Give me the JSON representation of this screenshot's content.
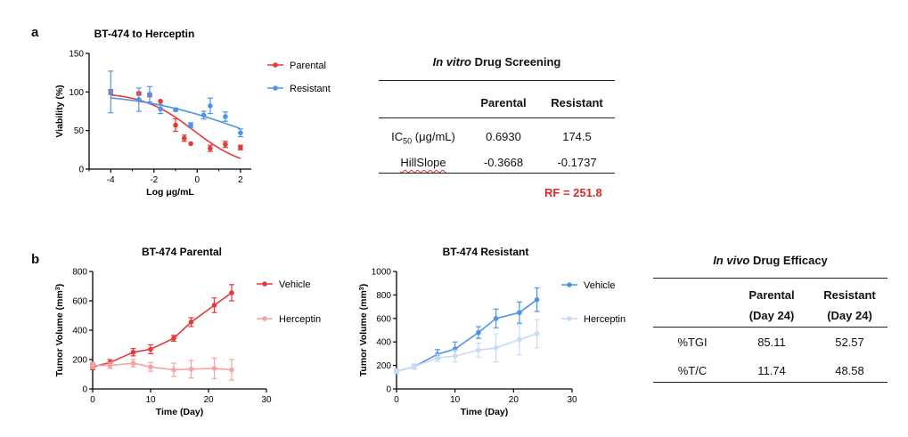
{
  "panels": {
    "a": "a",
    "b": "b"
  },
  "colors": {
    "parental": "#e63939",
    "resistant": "#4d94e8",
    "parental_herceptin": "#f5a3a3",
    "resistant_herceptin": "#c6dcf5",
    "rf": "#d42a2a"
  },
  "chart_data": [
    {
      "id": "chart-a",
      "type": "scatter",
      "title": "BT-474 to Herceptin",
      "xlabel": "Log μg/mL",
      "ylabel": "Viability (%)",
      "xlim": [
        -5,
        2.5
      ],
      "ylim": [
        0,
        150
      ],
      "xticks": [
        -4,
        -2,
        0,
        2
      ],
      "yticks": [
        0,
        50,
        100,
        150
      ],
      "legend_position": "top-right",
      "series": [
        {
          "name": "Parental",
          "color": "#e63939",
          "marker": "circle",
          "x": [
            -4,
            -2.7,
            -2.2,
            -1.7,
            -1.0,
            -0.6,
            -0.3,
            0.6,
            1.3,
            2.0
          ],
          "y": [
            100,
            98,
            96,
            88,
            57,
            40,
            33,
            27,
            32,
            28
          ],
          "err": [
            3,
            2,
            2,
            0,
            8,
            4,
            0,
            4,
            4,
            3
          ],
          "fit": {
            "bottom": 0,
            "top": 100,
            "logIC50": -0.159,
            "hill": -0.3668
          }
        },
        {
          "name": "Resistant",
          "color": "#4d94e8",
          "marker": "circle",
          "x": [
            -4,
            -2.7,
            -2.2,
            -1.7,
            -1.0,
            -0.3,
            0.3,
            0.6,
            1.3,
            2.0
          ],
          "y": [
            100,
            90,
            97,
            78,
            77,
            57,
            70,
            82,
            68,
            47
          ],
          "err": [
            27,
            15,
            10,
            6,
            2,
            3,
            5,
            10,
            6,
            5
          ],
          "fit": {
            "bottom": 0,
            "top": 100,
            "logIC50": 2.242,
            "hill": -0.1737
          }
        }
      ]
    },
    {
      "id": "chart-b1",
      "type": "line",
      "title": "BT-474 Parental",
      "xlabel": "Time (Day)",
      "ylabel": "Tumor Volume (mm³)",
      "ylabel_base": "Tumor Volume (mm",
      "ylabel_sup": "3",
      "ylabel_end": ")",
      "xlim": [
        0,
        30
      ],
      "ylim": [
        0,
        800
      ],
      "xticks": [
        0,
        10,
        20,
        30
      ],
      "yticks": [
        0,
        200,
        400,
        600,
        800
      ],
      "legend_position": "right",
      "series": [
        {
          "name": "Vehicle",
          "color": "#e63939",
          "x": [
            0,
            3,
            7,
            10,
            14,
            17,
            21,
            24
          ],
          "y": [
            150,
            180,
            250,
            270,
            345,
            455,
            570,
            655
          ],
          "err": [
            20,
            20,
            25,
            30,
            20,
            30,
            50,
            55
          ]
        },
        {
          "name": "Herceptin",
          "color": "#f5a3a3",
          "x": [
            0,
            3,
            7,
            10,
            14,
            17,
            21,
            24
          ],
          "y": [
            160,
            160,
            175,
            150,
            130,
            135,
            140,
            130
          ],
          "err": [
            20,
            20,
            25,
            30,
            45,
            60,
            70,
            70
          ]
        }
      ]
    },
    {
      "id": "chart-b2",
      "type": "line",
      "title": "BT-474 Resistant",
      "xlabel": "Time (Day)",
      "ylabel": "Tumor Volume (mm³)",
      "ylabel_base": "Tumor Volume (mm",
      "ylabel_sup": "3",
      "ylabel_end": ")",
      "xlim": [
        0,
        30
      ],
      "ylim": [
        0,
        1000
      ],
      "xticks": [
        0,
        10,
        20,
        30
      ],
      "yticks": [
        0,
        200,
        400,
        600,
        800,
        1000
      ],
      "legend_position": "right",
      "series": [
        {
          "name": "Vehicle",
          "color": "#4d94e8",
          "x": [
            0,
            3,
            7,
            10,
            14,
            17,
            21,
            24
          ],
          "y": [
            150,
            190,
            295,
            340,
            480,
            600,
            650,
            760
          ],
          "err": [
            20,
            20,
            40,
            60,
            50,
            80,
            90,
            100
          ]
        },
        {
          "name": "Herceptin",
          "color": "#c6dcf5",
          "x": [
            0,
            3,
            7,
            10,
            14,
            17,
            21,
            24
          ],
          "y": [
            150,
            190,
            265,
            280,
            330,
            350,
            420,
            470
          ],
          "err": [
            20,
            20,
            30,
            50,
            60,
            120,
            130,
            120
          ]
        }
      ]
    }
  ],
  "table_a": {
    "title_italic": "In vitro",
    "title_rest": " Drug Screening",
    "headers": [
      "Parental",
      "Resistant"
    ],
    "rows": [
      {
        "label_base": "IC",
        "label_sub": "50",
        "label_rest": " (μg/mL)",
        "values": [
          "0.6930",
          "174.5"
        ]
      },
      {
        "label": "HillSlope",
        "values": [
          "-0.3668",
          "-0.1737"
        ]
      }
    ],
    "rf": "RF = 251.8"
  },
  "table_b": {
    "title_italic": "In vivo",
    "title_rest": " Drug Efficacy",
    "headers": [
      {
        "line1": "Parental",
        "line2": "(Day 24)"
      },
      {
        "line1": "Resistant",
        "line2": "(Day 24)"
      }
    ],
    "rows": [
      {
        "label": "%TGI",
        "values": [
          "85.11",
          "52.57"
        ]
      },
      {
        "label": "%T/C",
        "values": [
          "11.74",
          "48.58"
        ]
      }
    ]
  }
}
